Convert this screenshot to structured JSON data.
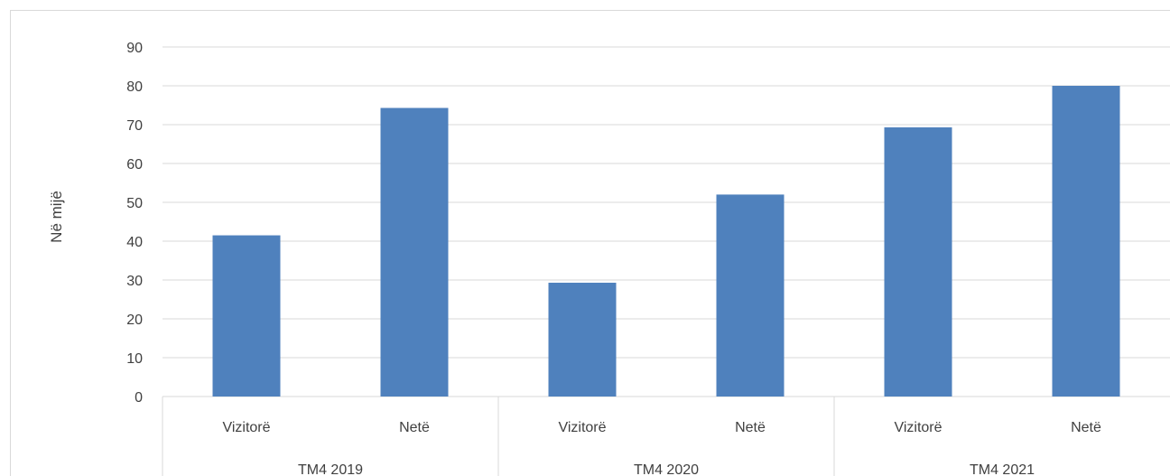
{
  "chart_data": {
    "type": "bar",
    "title": "",
    "ylabel": "Në mijë",
    "xlabel": "",
    "ylim": [
      0,
      90
    ],
    "yticks": [
      "0",
      "10",
      "20",
      "30",
      "40",
      "50",
      "60",
      "70",
      "80",
      "90"
    ],
    "grid": true,
    "legend": "none",
    "groups": [
      {
        "label": "TM4 2019",
        "categories": [
          "Vizitorë",
          "Netë"
        ]
      },
      {
        "label": "TM4 2020",
        "categories": [
          "Vizitorë",
          "Netë"
        ]
      },
      {
        "label": "TM4 2021",
        "categories": [
          "Vizitorë",
          "Netë"
        ]
      }
    ],
    "categories": [
      "Vizitorë",
      "Netë",
      "Vizitorë",
      "Netë",
      "Vizitorë",
      "Netë"
    ],
    "values": [
      41.5,
      74.3,
      29.3,
      52.0,
      69.3,
      80.0
    ],
    "bar_color": "#4f81bd",
    "grid_color": "#d9d9d9"
  }
}
